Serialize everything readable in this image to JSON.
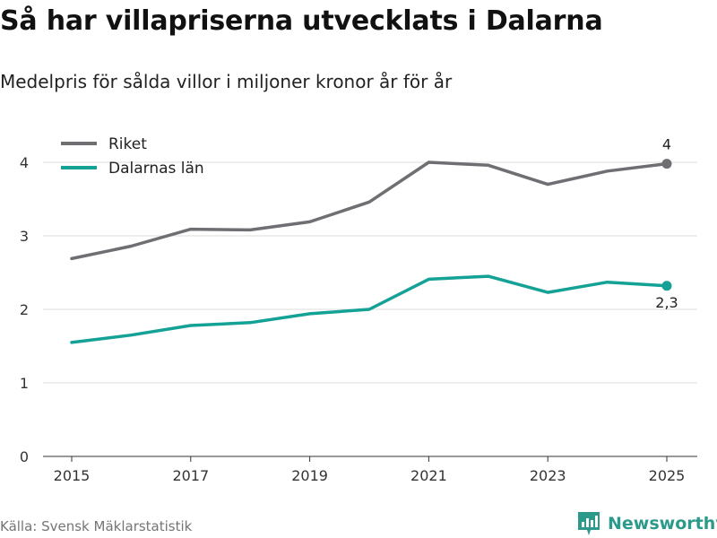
{
  "title": "Så har villapriserna utvecklats i Dalarna",
  "subtitle": "Medelpris för sålda villor i miljoner kronor år för år",
  "source": "Källa: Svensk Mäklarstatistik",
  "brand": "Newsworthy",
  "colors": {
    "riket": "#6e6e73",
    "dalarna": "#14a196",
    "grid": "#dddddd",
    "brand": "#2b9a8b"
  },
  "chart_data": {
    "type": "line",
    "x": [
      2015,
      2016,
      2017,
      2018,
      2019,
      2020,
      2021,
      2022,
      2023,
      2024,
      2025
    ],
    "xticks": [
      2015,
      2017,
      2019,
      2021,
      2023,
      2025
    ],
    "xtick_labels": [
      "2015",
      "2017",
      "2019",
      "2021",
      "2023",
      "2025"
    ],
    "yticks": [
      0,
      1,
      2,
      3,
      4
    ],
    "ytick_labels": [
      "0",
      "1",
      "2",
      "3",
      "4"
    ],
    "ylim": [
      0,
      4
    ],
    "legend_position": "top-left",
    "series": [
      {
        "name": "Riket",
        "values": [
          2.69,
          2.86,
          3.09,
          3.08,
          3.19,
          3.46,
          4.0,
          3.96,
          3.7,
          3.88,
          3.98
        ],
        "end_label": "4"
      },
      {
        "name": "Dalarnas län",
        "values": [
          1.55,
          1.65,
          1.78,
          1.82,
          1.94,
          2.0,
          2.41,
          2.45,
          2.23,
          2.37,
          2.32
        ],
        "end_label": "2,3"
      }
    ]
  }
}
